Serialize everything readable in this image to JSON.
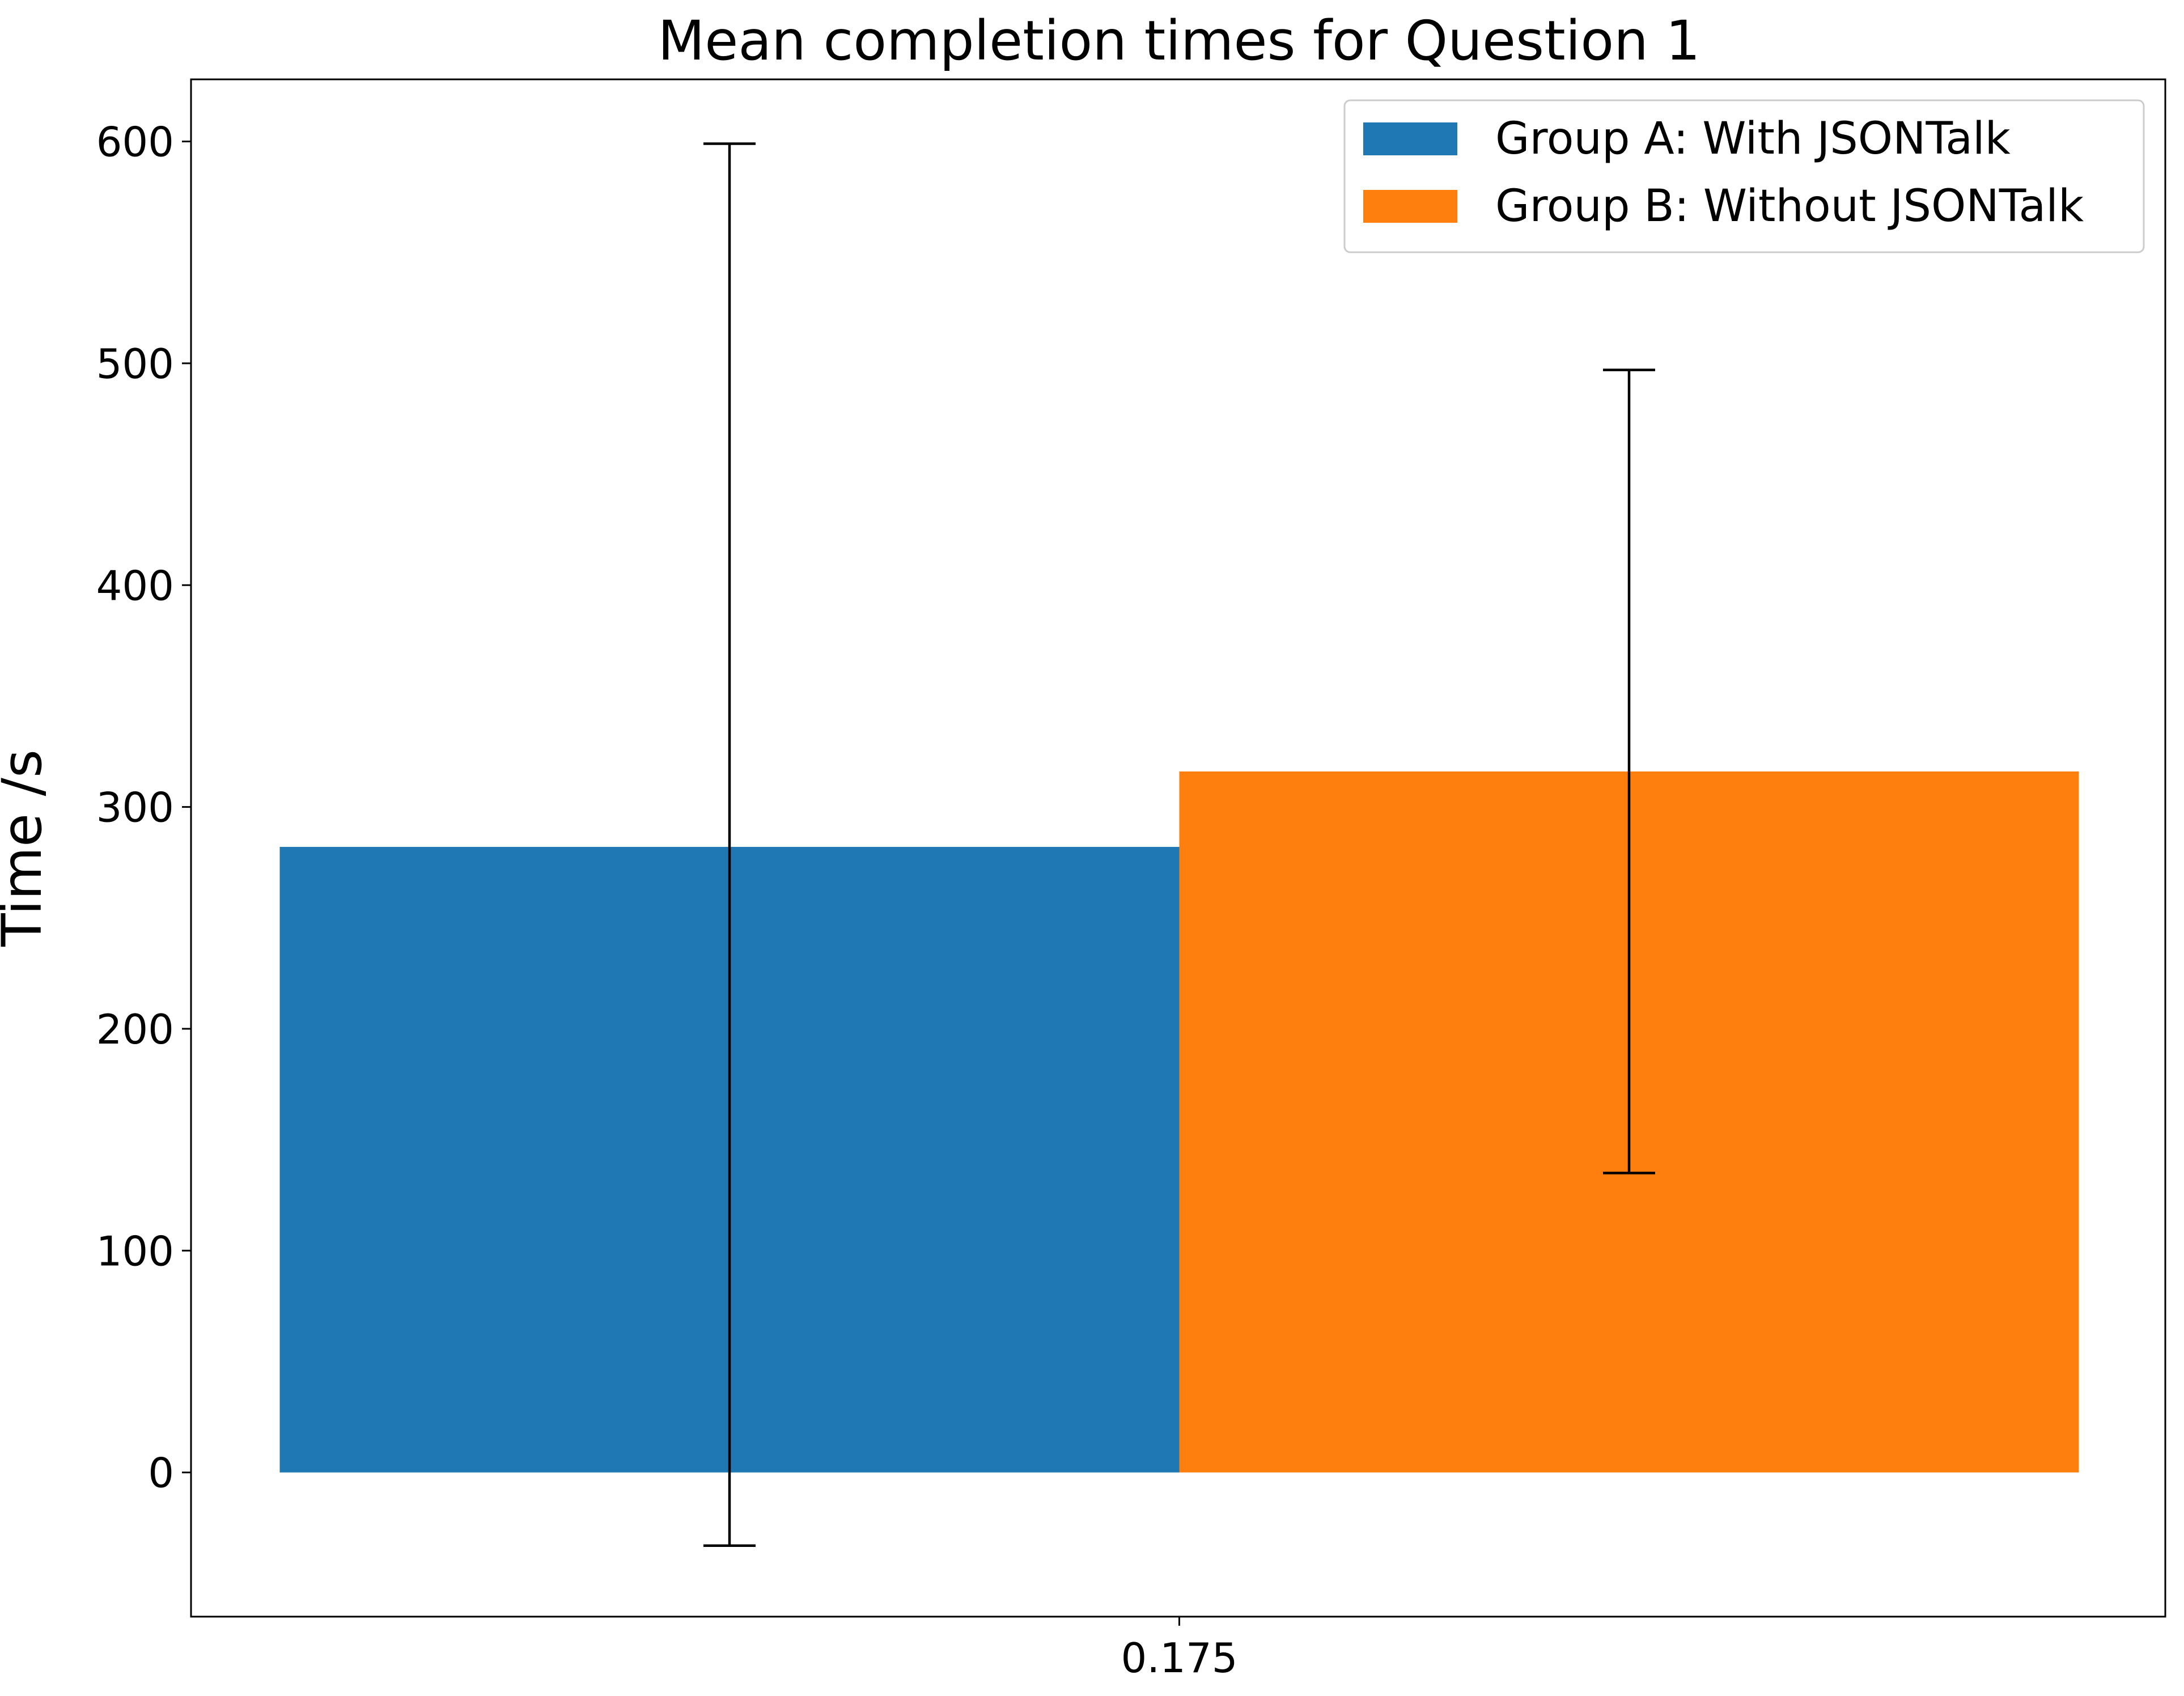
{
  "chart_data": {
    "type": "bar",
    "title": "Mean completion times for Question 1",
    "xlabel": "",
    "ylabel": "Time /s",
    "categories": [
      "0.175"
    ],
    "x_tick_labels": [
      "0.175"
    ],
    "y_ticks": [
      0,
      100,
      200,
      300,
      400,
      500,
      600
    ],
    "ylim": [
      -65,
      628
    ],
    "grid": false,
    "legend_position": "top-right",
    "series": [
      {
        "name": "Group A: With JSONTalk",
        "color": "#1f77b4",
        "values": [
          282
        ],
        "error_low": [
          -33
        ],
        "error_high": [
          599
        ]
      },
      {
        "name": "Group B: Without JSONTalk",
        "color": "#ff7f0e",
        "values": [
          316
        ],
        "error_low": [
          135
        ],
        "error_high": [
          497
        ]
      }
    ]
  }
}
